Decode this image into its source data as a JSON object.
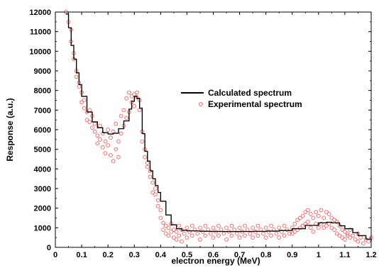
{
  "chart_data": {
    "type": "line",
    "title": "",
    "xlabel": "electron energy (MeV)",
    "ylabel": "Response (a.u.)",
    "xlim": [
      0,
      1.2
    ],
    "ylim": [
      0,
      12000
    ],
    "x_ticks": [
      "0",
      "0.1",
      "0.2",
      "0.3",
      "0.4",
      "0.5",
      "0.6",
      "0.7",
      "0.8",
      "0.9",
      "1",
      "1.1",
      "1.2"
    ],
    "y_ticks": [
      "0",
      "1000",
      "2000",
      "3000",
      "4000",
      "5000",
      "6000",
      "7000",
      "8000",
      "9000",
      "10000",
      "11000",
      "12000"
    ],
    "grid": false,
    "legend_position": "center-right",
    "colors": {
      "calculated": "#000000",
      "experimental": "#ff5a5a"
    },
    "series": [
      {
        "name": "Calculated spectrum",
        "style": "step-line",
        "x": [
          0.04,
          0.05,
          0.06,
          0.07,
          0.08,
          0.09,
          0.1,
          0.12,
          0.14,
          0.16,
          0.18,
          0.2,
          0.22,
          0.24,
          0.26,
          0.28,
          0.29,
          0.3,
          0.31,
          0.32,
          0.33,
          0.34,
          0.35,
          0.36,
          0.37,
          0.38,
          0.39,
          0.4,
          0.42,
          0.44,
          0.46,
          0.48,
          0.5,
          0.55,
          0.6,
          0.65,
          0.7,
          0.75,
          0.8,
          0.85,
          0.9,
          0.95,
          1.0,
          1.03,
          1.05,
          1.08,
          1.1,
          1.13,
          1.15,
          1.18,
          1.2
        ],
        "y": [
          11900,
          11200,
          10300,
          9600,
          8900,
          8300,
          7700,
          6900,
          6400,
          6100,
          5850,
          5780,
          5820,
          6050,
          6450,
          7050,
          7450,
          7700,
          7600,
          7100,
          5800,
          4900,
          4400,
          3900,
          3500,
          3150,
          2800,
          2350,
          1650,
          1150,
          950,
          870,
          840,
          820,
          810,
          805,
          810,
          815,
          830,
          860,
          950,
          1120,
          1250,
          1280,
          1250,
          1100,
          950,
          750,
          600,
          420,
          300
        ]
      },
      {
        "name": "Experimental spectrum",
        "style": "scatter",
        "marker": "open-circle",
        "points": [
          [
            0.04,
            12000
          ],
          [
            0.05,
            11500
          ],
          [
            0.06,
            11100
          ],
          [
            0.06,
            10500
          ],
          [
            0.07,
            9900
          ],
          [
            0.07,
            9600
          ],
          [
            0.08,
            9000
          ],
          [
            0.08,
            8700
          ],
          [
            0.09,
            8200
          ],
          [
            0.09,
            8400
          ],
          [
            0.1,
            7900
          ],
          [
            0.1,
            7400
          ],
          [
            0.11,
            7100
          ],
          [
            0.11,
            7500
          ],
          [
            0.12,
            6900
          ],
          [
            0.12,
            6500
          ],
          [
            0.13,
            6400
          ],
          [
            0.13,
            7000
          ],
          [
            0.14,
            6100
          ],
          [
            0.14,
            6700
          ],
          [
            0.15,
            5900
          ],
          [
            0.15,
            6300
          ],
          [
            0.16,
            5700
          ],
          [
            0.16,
            5300
          ],
          [
            0.17,
            5500
          ],
          [
            0.17,
            6200
          ],
          [
            0.18,
            5100
          ],
          [
            0.18,
            5800
          ],
          [
            0.19,
            4800
          ],
          [
            0.19,
            5400
          ],
          [
            0.2,
            5200
          ],
          [
            0.2,
            6000
          ],
          [
            0.21,
            4700
          ],
          [
            0.21,
            5600
          ],
          [
            0.22,
            4400
          ],
          [
            0.22,
            5900
          ],
          [
            0.23,
            5000
          ],
          [
            0.23,
            6300
          ],
          [
            0.24,
            5400
          ],
          [
            0.24,
            4600
          ],
          [
            0.25,
            5800
          ],
          [
            0.25,
            6700
          ],
          [
            0.26,
            6200
          ],
          [
            0.26,
            7000
          ],
          [
            0.27,
            6600
          ],
          [
            0.27,
            7600
          ],
          [
            0.28,
            6900
          ],
          [
            0.28,
            7900
          ],
          [
            0.29,
            7400
          ],
          [
            0.29,
            7700
          ],
          [
            0.3,
            7800
          ],
          [
            0.3,
            7200
          ],
          [
            0.31,
            7650
          ],
          [
            0.31,
            7900
          ],
          [
            0.32,
            7500
          ],
          [
            0.32,
            7000
          ],
          [
            0.33,
            5900
          ],
          [
            0.33,
            5400
          ],
          [
            0.34,
            5000
          ],
          [
            0.34,
            4600
          ],
          [
            0.35,
            4300
          ],
          [
            0.35,
            4100
          ],
          [
            0.36,
            3600
          ],
          [
            0.36,
            3900
          ],
          [
            0.37,
            2800
          ],
          [
            0.37,
            3300
          ],
          [
            0.38,
            2700
          ],
          [
            0.38,
            3000
          ],
          [
            0.39,
            2400
          ],
          [
            0.39,
            2100
          ],
          [
            0.4,
            1900
          ],
          [
            0.4,
            1500
          ],
          [
            0.41,
            1250
          ],
          [
            0.41,
            900
          ],
          [
            0.42,
            700
          ],
          [
            0.42,
            1100
          ],
          [
            0.43,
            600
          ],
          [
            0.43,
            1000
          ],
          [
            0.44,
            800
          ],
          [
            0.44,
            1200
          ],
          [
            0.45,
            500
          ],
          [
            0.45,
            900
          ],
          [
            0.46,
            400
          ],
          [
            0.46,
            800
          ],
          [
            0.47,
            1100
          ],
          [
            0.47,
            600
          ],
          [
            0.48,
            900
          ],
          [
            0.48,
            300
          ],
          [
            0.49,
            700
          ],
          [
            0.5,
            1000
          ],
          [
            0.5,
            500
          ],
          [
            0.51,
            800
          ],
          [
            0.52,
            1100
          ],
          [
            0.52,
            600
          ],
          [
            0.53,
            900
          ],
          [
            0.54,
            700
          ],
          [
            0.55,
            1000
          ],
          [
            0.55,
            400
          ],
          [
            0.56,
            800
          ],
          [
            0.57,
            1100
          ],
          [
            0.57,
            600
          ],
          [
            0.58,
            900
          ],
          [
            0.59,
            700
          ],
          [
            0.6,
            1000
          ],
          [
            0.6,
            500
          ],
          [
            0.61,
            800
          ],
          [
            0.62,
            1100
          ],
          [
            0.62,
            600
          ],
          [
            0.63,
            900
          ],
          [
            0.64,
            700
          ],
          [
            0.65,
            1000
          ],
          [
            0.65,
            400
          ],
          [
            0.66,
            800
          ],
          [
            0.67,
            1100
          ],
          [
            0.67,
            600
          ],
          [
            0.68,
            900
          ],
          [
            0.69,
            700
          ],
          [
            0.7,
            1000
          ],
          [
            0.7,
            500
          ],
          [
            0.71,
            800
          ],
          [
            0.72,
            1100
          ],
          [
            0.72,
            600
          ],
          [
            0.73,
            900
          ],
          [
            0.74,
            700
          ],
          [
            0.75,
            1000
          ],
          [
            0.75,
            500
          ],
          [
            0.76,
            800
          ],
          [
            0.77,
            1100
          ],
          [
            0.77,
            600
          ],
          [
            0.78,
            900
          ],
          [
            0.79,
            700
          ],
          [
            0.8,
            1000
          ],
          [
            0.8,
            500
          ],
          [
            0.81,
            800
          ],
          [
            0.82,
            1100
          ],
          [
            0.82,
            600
          ],
          [
            0.83,
            900
          ],
          [
            0.84,
            700
          ],
          [
            0.85,
            1000
          ],
          [
            0.85,
            500
          ],
          [
            0.86,
            800
          ],
          [
            0.87,
            1100
          ],
          [
            0.87,
            600
          ],
          [
            0.88,
            900
          ],
          [
            0.89,
            700
          ],
          [
            0.9,
            1000
          ],
          [
            0.9,
            700
          ],
          [
            0.91,
            1200
          ],
          [
            0.91,
            800
          ],
          [
            0.92,
            1400
          ],
          [
            0.92,
            900
          ],
          [
            0.93,
            1500
          ],
          [
            0.93,
            1000
          ],
          [
            0.94,
            1600
          ],
          [
            0.94,
            1100
          ],
          [
            0.95,
            1800
          ],
          [
            0.95,
            1200
          ],
          [
            0.96,
            1900
          ],
          [
            0.96,
            1300
          ],
          [
            0.97,
            1700
          ],
          [
            0.97,
            1000
          ],
          [
            0.98,
            1500
          ],
          [
            0.98,
            800
          ],
          [
            0.99,
            1800
          ],
          [
            0.99,
            1200
          ],
          [
            1.0,
            1600
          ],
          [
            1.0,
            1000
          ],
          [
            1.01,
            1900
          ],
          [
            1.01,
            1200
          ],
          [
            1.02,
            1500
          ],
          [
            1.02,
            1000
          ],
          [
            1.03,
            1800
          ],
          [
            1.03,
            1100
          ],
          [
            1.04,
            1700
          ],
          [
            1.04,
            1200
          ],
          [
            1.05,
            1500
          ],
          [
            1.05,
            1000
          ],
          [
            1.06,
            1400
          ],
          [
            1.06,
            900
          ],
          [
            1.07,
            1300
          ],
          [
            1.07,
            700
          ],
          [
            1.08,
            1100
          ],
          [
            1.08,
            600
          ],
          [
            1.09,
            900
          ],
          [
            1.09,
            500
          ],
          [
            1.1,
            800
          ],
          [
            1.1,
            400
          ],
          [
            1.11,
            700
          ],
          [
            1.11,
            600
          ],
          [
            1.12,
            500
          ],
          [
            1.12,
            900
          ],
          [
            1.13,
            600
          ],
          [
            1.14,
            400
          ],
          [
            1.15,
            700
          ],
          [
            1.15,
            300
          ],
          [
            1.16,
            500
          ],
          [
            1.17,
            200
          ],
          [
            1.18,
            400
          ],
          [
            1.19,
            300
          ],
          [
            1.2,
            500
          ]
        ]
      }
    ]
  }
}
